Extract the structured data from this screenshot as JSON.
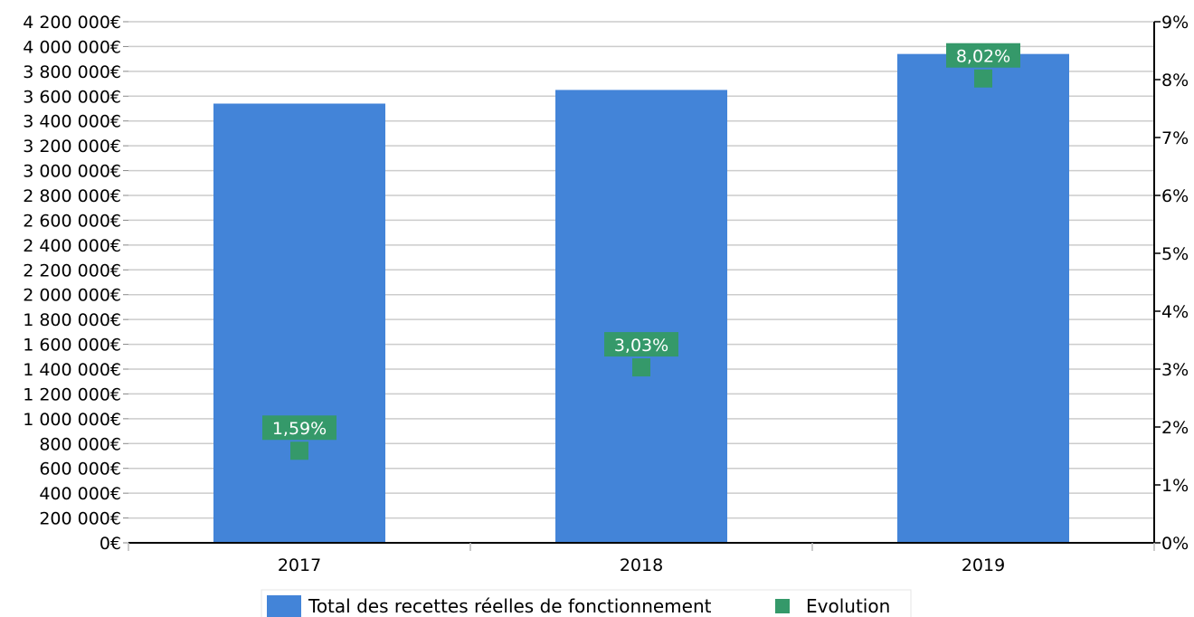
{
  "chart_data": {
    "type": "bar",
    "categories": [
      "2017",
      "2018",
      "2019"
    ],
    "series": [
      {
        "name": "Total des recettes réelles de fonctionnement",
        "type": "bar",
        "axis": "left",
        "color": "#4384d8",
        "values": [
          3540000,
          3650000,
          3940000
        ]
      },
      {
        "name": "Evolution",
        "type": "point",
        "axis": "right",
        "color": "#35996a",
        "values": [
          1.59,
          3.03,
          8.02
        ],
        "labels": [
          "1,59%",
          "3,03%",
          "8,02%"
        ]
      }
    ],
    "y_left": {
      "min": 0,
      "max": 4200000,
      "step": 200000,
      "tick_labels": [
        "0€",
        "200 000€",
        "400 000€",
        "600 000€",
        "800 000€",
        "1 000 000€",
        "1 200 000€",
        "1 400 000€",
        "1 600 000€",
        "1 800 000€",
        "2 000 000€",
        "2 200 000€",
        "2 400 000€",
        "2 600 000€",
        "2 800 000€",
        "3 000 000€",
        "3 200 000€",
        "3 400 000€",
        "3 600 000€",
        "3 800 000€",
        "4 000 000€",
        "4 200 000€"
      ]
    },
    "y_right": {
      "min": 0,
      "max": 9,
      "step": 1,
      "tick_labels": [
        "0%",
        "1%",
        "2%",
        "3%",
        "4%",
        "5%",
        "6%",
        "7%",
        "8%",
        "9%"
      ]
    },
    "grid": true,
    "legend_position": "bottom-center",
    "title": "",
    "xlabel": "",
    "ylabel": ""
  }
}
